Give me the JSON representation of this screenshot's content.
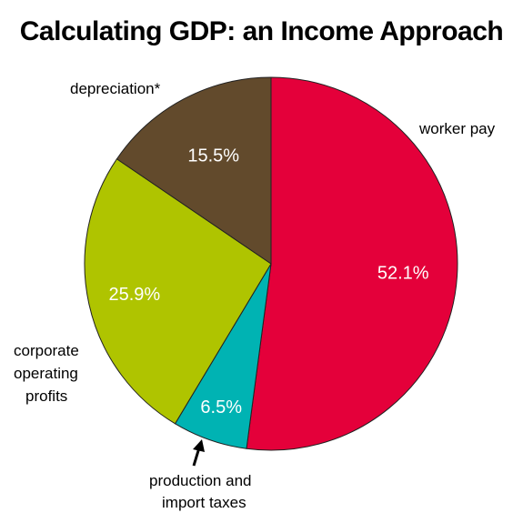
{
  "chart_data": {
    "type": "pie",
    "title": "Calculating GDP:  an Income Approach",
    "slices": [
      {
        "label": "worker pay",
        "value": 52.1,
        "value_label": "52.1%",
        "color": "#E4003A"
      },
      {
        "label": "production and import taxes",
        "value": 6.5,
        "value_label": "6.5%",
        "color": "#00B3B3"
      },
      {
        "label": "corporate operating profits",
        "value": 25.9,
        "value_label": "25.9%",
        "color": "#AFC400"
      },
      {
        "label": "depreciation*",
        "value": 15.5,
        "value_label": "15.5%",
        "color": "#624A2C"
      }
    ],
    "start": "top",
    "direction": "clockwise"
  }
}
